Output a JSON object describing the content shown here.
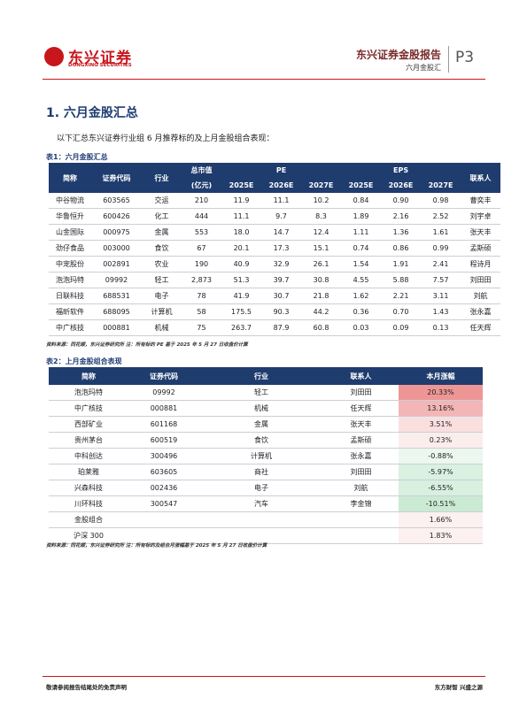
{
  "header": {
    "logo_text": "东兴证券",
    "logo_subtext": "DONGXING SECURITIES",
    "report_title": "东兴证券金股报告",
    "report_subtitle": "六月金股汇",
    "page": "P3"
  },
  "section_title": "1. 六月金股汇总",
  "intro": "以下汇总东兴证券行业组 6 月推荐标的及上月金股组合表现：",
  "table1": {
    "caption": "表1：六月金股汇总",
    "header": {
      "name": "简称",
      "code": "证券代码",
      "industry": "行业",
      "market_cap": "总市值",
      "market_cap_unit": "(亿元)",
      "pe": "PE",
      "pe_years": [
        "2025E",
        "2026E",
        "2027E"
      ],
      "eps": "EPS",
      "eps_years": [
        "2025E",
        "2026E",
        "2027E"
      ],
      "contact": "联系人"
    },
    "rows": [
      [
        "中谷物流",
        "603565",
        "交运",
        "210",
        "11.9",
        "11.1",
        "10.2",
        "0.84",
        "0.90",
        "0.98",
        "曹奕丰"
      ],
      [
        "华鲁恒升",
        "600426",
        "化工",
        "444",
        "11.1",
        "9.7",
        "8.3",
        "1.89",
        "2.16",
        "2.52",
        "刘宇卓"
      ],
      [
        "山金国际",
        "000975",
        "金属",
        "553",
        "18.0",
        "14.7",
        "12.4",
        "1.11",
        "1.36",
        "1.61",
        "张天丰"
      ],
      [
        "劲仔食品",
        "003000",
        "食饮",
        "67",
        "20.1",
        "17.3",
        "15.1",
        "0.74",
        "0.86",
        "0.99",
        "孟斯硕"
      ],
      [
        "中宠股份",
        "002891",
        "农业",
        "190",
        "40.9",
        "32.9",
        "26.1",
        "1.54",
        "1.91",
        "2.41",
        "程诗月"
      ],
      [
        "泡泡玛特",
        "09992",
        "轻工",
        "2,873",
        "51.3",
        "39.7",
        "30.8",
        "4.55",
        "5.88",
        "7.57",
        "刘田田"
      ],
      [
        "日联科技",
        "688531",
        "电子",
        "78",
        "41.9",
        "30.7",
        "21.8",
        "1.62",
        "2.21",
        "3.11",
        "刘航"
      ],
      [
        "福昕软件",
        "688095",
        "计算机",
        "58",
        "175.5",
        "90.3",
        "44.2",
        "0.36",
        "0.70",
        "1.43",
        "张永嘉"
      ],
      [
        "中广核技",
        "000881",
        "机械",
        "75",
        "263.7",
        "87.9",
        "60.8",
        "0.03",
        "0.09",
        "0.13",
        "任天辉"
      ]
    ],
    "note": "资料来源：同花顺，东兴证券研究所 注：所有标的 PE 基于 2025 年 5 月 27 日收盘价计算"
  },
  "table2": {
    "caption": "表2：上月金股组合表现",
    "header": [
      "简称",
      "证券代码",
      "行业",
      "联系人",
      "本月涨幅"
    ],
    "rows": [
      [
        "泡泡玛特",
        "09992",
        "轻工",
        "刘田田",
        "20.33%"
      ],
      [
        "中广核技",
        "000881",
        "机械",
        "任天辉",
        "13.16%"
      ],
      [
        "西部矿业",
        "601168",
        "金属",
        "张天丰",
        "3.51%"
      ],
      [
        "贵州茅台",
        "600519",
        "食饮",
        "孟斯硕",
        "0.23%"
      ],
      [
        "中科创达",
        "300496",
        "计算机",
        "张永嘉",
        "-0.88%"
      ],
      [
        "珀莱雅",
        "603605",
        "商社",
        "刘田田",
        "-5.97%"
      ],
      [
        "兴森科技",
        "002436",
        "电子",
        "刘航",
        "-6.55%"
      ],
      [
        "川环科技",
        "300547",
        "汽车",
        "李金锦",
        "-10.51%"
      ]
    ],
    "summary": [
      {
        "label": "金股组合",
        "change": "1.66%"
      },
      {
        "label": "沪深 300",
        "change": "1.83%"
      }
    ],
    "note": "资料来源：同花顺，东兴证券研究所 注：所有标的及组合月涨幅基于 2025 年 5 月 27 日收盘价计算"
  },
  "footer": {
    "left": "敬请参阅报告结尾处的免责声明",
    "right": "东方财智 兴盛之源"
  }
}
